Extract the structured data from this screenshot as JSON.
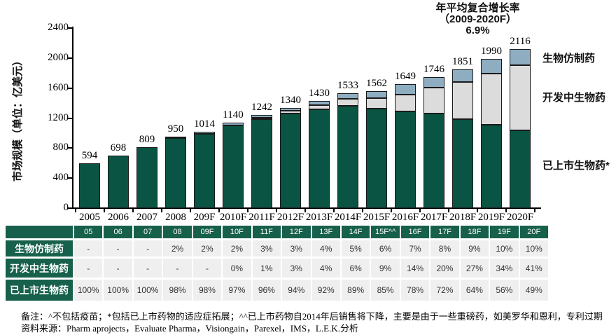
{
  "annotation": {
    "line1": "年平均复合增长率",
    "line2": "（2009-2020F）",
    "line3": "6.9%"
  },
  "y_axis": {
    "title": "市场规模（单位：亿美元）",
    "tick_values": [
      0,
      400,
      800,
      1200,
      1600,
      2000,
      2400
    ]
  },
  "chart_data": {
    "type": "bar",
    "stacked": true,
    "title": "年平均复合增长率（2009-2020F） 6.9%",
    "ylabel": "市场规模（单位：亿美元）",
    "ylim": [
      0,
      2400
    ],
    "grid": false,
    "legend_position": "right",
    "categories": [
      "2005",
      "2006",
      "2007",
      "2008",
      "209F",
      "2010F",
      "2011F",
      "2012F",
      "2013F",
      "2014F",
      "2015F",
      "2016F",
      "2017F",
      "2018F",
      "2019F",
      "2020F"
    ],
    "totals": [
      594,
      698,
      809,
      950,
      1014,
      1140,
      1242,
      1340,
      1430,
      1533,
      1562,
      1649,
      1746,
      1851,
      1990,
      2116
    ],
    "series": [
      {
        "name": "已上市生物药*",
        "color": "#0A5443",
        "pct_of_total": [
          100,
          100,
          100,
          98,
          98,
          97,
          96,
          94,
          92,
          89,
          85,
          78,
          72,
          64,
          56,
          49
        ]
      },
      {
        "name": "开发中生物药",
        "color": "#DCDCDC",
        "pct_of_total": [
          0,
          0,
          0,
          0,
          0,
          0,
          1,
          3,
          4,
          6,
          9,
          14,
          20,
          27,
          34,
          41
        ]
      },
      {
        "name": "生物仿制药",
        "color": "#8EADC1",
        "pct_of_total": [
          0,
          0,
          0,
          2,
          2,
          2,
          3,
          3,
          4,
          5,
          6,
          7,
          8,
          9,
          10,
          10
        ]
      }
    ]
  },
  "legend": {
    "items": [
      {
        "label": "生物仿制药",
        "color": "#8EADC1"
      },
      {
        "label": "开发中生物药",
        "color": "#DCDCDC"
      },
      {
        "label": "已上市生物药*",
        "color": "#0A5443"
      }
    ]
  },
  "table": {
    "col_headers": [
      "",
      "05",
      "06",
      "07",
      "08",
      "09F",
      "10F",
      "11F",
      "12F",
      "13F",
      "14F",
      "15F^^",
      "16F",
      "17F",
      "18F",
      "19F",
      "20F"
    ],
    "rows": [
      {
        "label": "生物仿制药",
        "values": [
          "-",
          "-",
          "-",
          "2%",
          "2%",
          "2%",
          "3%",
          "3%",
          "4%",
          "5%",
          "6%",
          "7%",
          "8%",
          "9%",
          "10%",
          "10%"
        ]
      },
      {
        "label": "开发中生物药",
        "values": [
          "-",
          "-",
          "-",
          "-",
          "-",
          "0%",
          "1%",
          "3%",
          "4%",
          "6%",
          "9%",
          "14%",
          "20%",
          "27%",
          "34%",
          "41%"
        ]
      },
      {
        "label": "已上市生物药",
        "values": [
          "100%",
          "100%",
          "100%",
          "98%",
          "98%",
          "97%",
          "96%",
          "94%",
          "92%",
          "89%",
          "85%",
          "78%",
          "72%",
          "64%",
          "56%",
          "49%"
        ]
      }
    ]
  },
  "notes": {
    "line1": "备注：^不包括疫苗；*包括已上市药物的适应症拓展；^^已上市药物自2014年后销售将下降，主要是由于一些重磅药，如美罗华和恩利，专利过期",
    "line2": "资料来源：Pharm aprojects，Evaluate Pharma，Visiongain，Parexel，IMS，L.E.K.分析"
  },
  "colors": {
    "bar_marketed": "#0A5443",
    "bar_development": "#DCDCDC",
    "bar_biosimilar": "#8EADC1",
    "table_green": "#17604B",
    "table_cell_bg": "#EFEFEF"
  }
}
